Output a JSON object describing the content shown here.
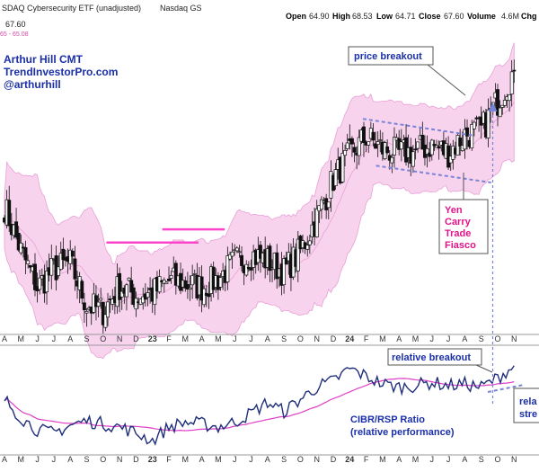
{
  "header": {
    "title": "SDAQ Cybersecurity ETF (unadjusted)",
    "exchange": "Nasdaq GS",
    "last_price": "67.60",
    "band_label": "65 - 65.08",
    "open_label": "Open",
    "open_value": "64.90",
    "high_label": "High",
    "high_value": "68.53",
    "low_label": "Low",
    "low_value": "64.71",
    "close_label": "Close",
    "close_value": "67.60",
    "volume_label": "Volume",
    "volume_value": "4.6M",
    "change_label": "Chg"
  },
  "author": {
    "line1": "Arthur Hill CMT",
    "line2": "TrendInvestorPro.com",
    "line3": "@arthurhill"
  },
  "annotations": {
    "price_breakout": "price breakout",
    "yen_lines": [
      "Yen",
      "Carry",
      "Trade",
      "Fiasco"
    ],
    "relative_breakout": "relative breakout",
    "rela_fragment": "rela",
    "stre_fragment": "stre",
    "ratio_title": "CIBR/RSP Ratio",
    "ratio_subtitle": "(relative performance)"
  },
  "colors": {
    "candle": "#111111",
    "band_fill": "#f6c4e8",
    "band_line": "#e8a0d6",
    "ma_line": "#e03ec8",
    "resistance": "#ff44cc",
    "trendline": "#7a84d6",
    "ratio_line": "#1f2f7a",
    "annotation_text": "#1a2fa8",
    "yen_text": "#e0158a"
  },
  "chart_data": [
    {
      "type": "candlestick",
      "title": "SDAQ Cybersecurity ETF (unadjusted)",
      "x_tick_labels": [
        "A",
        "M",
        "J",
        "J",
        "A",
        "S",
        "O",
        "N",
        "D",
        "23",
        "F",
        "M",
        "A",
        "M",
        "J",
        "J",
        "A",
        "S",
        "O",
        "N",
        "D",
        "24",
        "F",
        "M",
        "A",
        "M",
        "J",
        "J",
        "A",
        "S",
        "O",
        "N"
      ],
      "ylim": [
        45,
        70
      ],
      "overlays": [
        "bollinger-band",
        "moving-average"
      ],
      "close_path": [
        [
          "A",
          55.2
        ],
        [
          "M",
          51.5
        ],
        [
          "J",
          48.5
        ],
        [
          "J",
          50.0
        ],
        [
          "A",
          50.5
        ],
        [
          "S",
          47.0
        ],
        [
          "O",
          46.5
        ],
        [
          "N",
          48.6
        ],
        [
          "D",
          47.8
        ],
        [
          "23",
          48.0
        ],
        [
          "F",
          49.0
        ],
        [
          "M",
          48.8
        ],
        [
          "A",
          48.5
        ],
        [
          "M",
          49.2
        ],
        [
          "J",
          50.6
        ],
        [
          "J",
          51.2
        ],
        [
          "A",
          50.7
        ],
        [
          "S",
          49.8
        ],
        [
          "O",
          51.5
        ],
        [
          "N",
          54.3
        ],
        [
          "D",
          57.5
        ],
        [
          "24",
          59.5
        ],
        [
          "F",
          61.0
        ],
        [
          "M",
          60.0
        ],
        [
          "A",
          59.6
        ],
        [
          "M",
          59.8
        ],
        [
          "J",
          60.3
        ],
        [
          "J",
          59.7
        ],
        [
          "A",
          61.2
        ],
        [
          "S",
          61.5
        ],
        [
          "O",
          64.0
        ],
        [
          "N",
          66.5
        ]
      ]
    },
    {
      "type": "line",
      "title": "CIBR/RSP Ratio",
      "subtitle": "(relative performance)",
      "x_tick_labels": [
        "A",
        "M",
        "J",
        "J",
        "A",
        "S",
        "O",
        "N",
        "D",
        "23",
        "F",
        "M",
        "A",
        "M",
        "J",
        "J",
        "A",
        "S",
        "O",
        "N",
        "D",
        "24",
        "F",
        "M",
        "A",
        "M",
        "J",
        "J",
        "A",
        "S",
        "O",
        "N"
      ],
      "series": [
        {
          "name": "CIBR/RSP Ratio",
          "values": [
            0.62,
            0.5,
            0.42,
            0.4,
            0.45,
            0.48,
            0.46,
            0.44,
            0.4,
            0.35,
            0.44,
            0.47,
            0.46,
            0.44,
            0.47,
            0.53,
            0.6,
            0.54,
            0.62,
            0.7,
            0.74,
            0.82,
            0.77,
            0.72,
            0.7,
            0.71,
            0.73,
            0.71,
            0.72,
            0.7,
            0.76,
            0.84
          ]
        }
      ]
    }
  ]
}
